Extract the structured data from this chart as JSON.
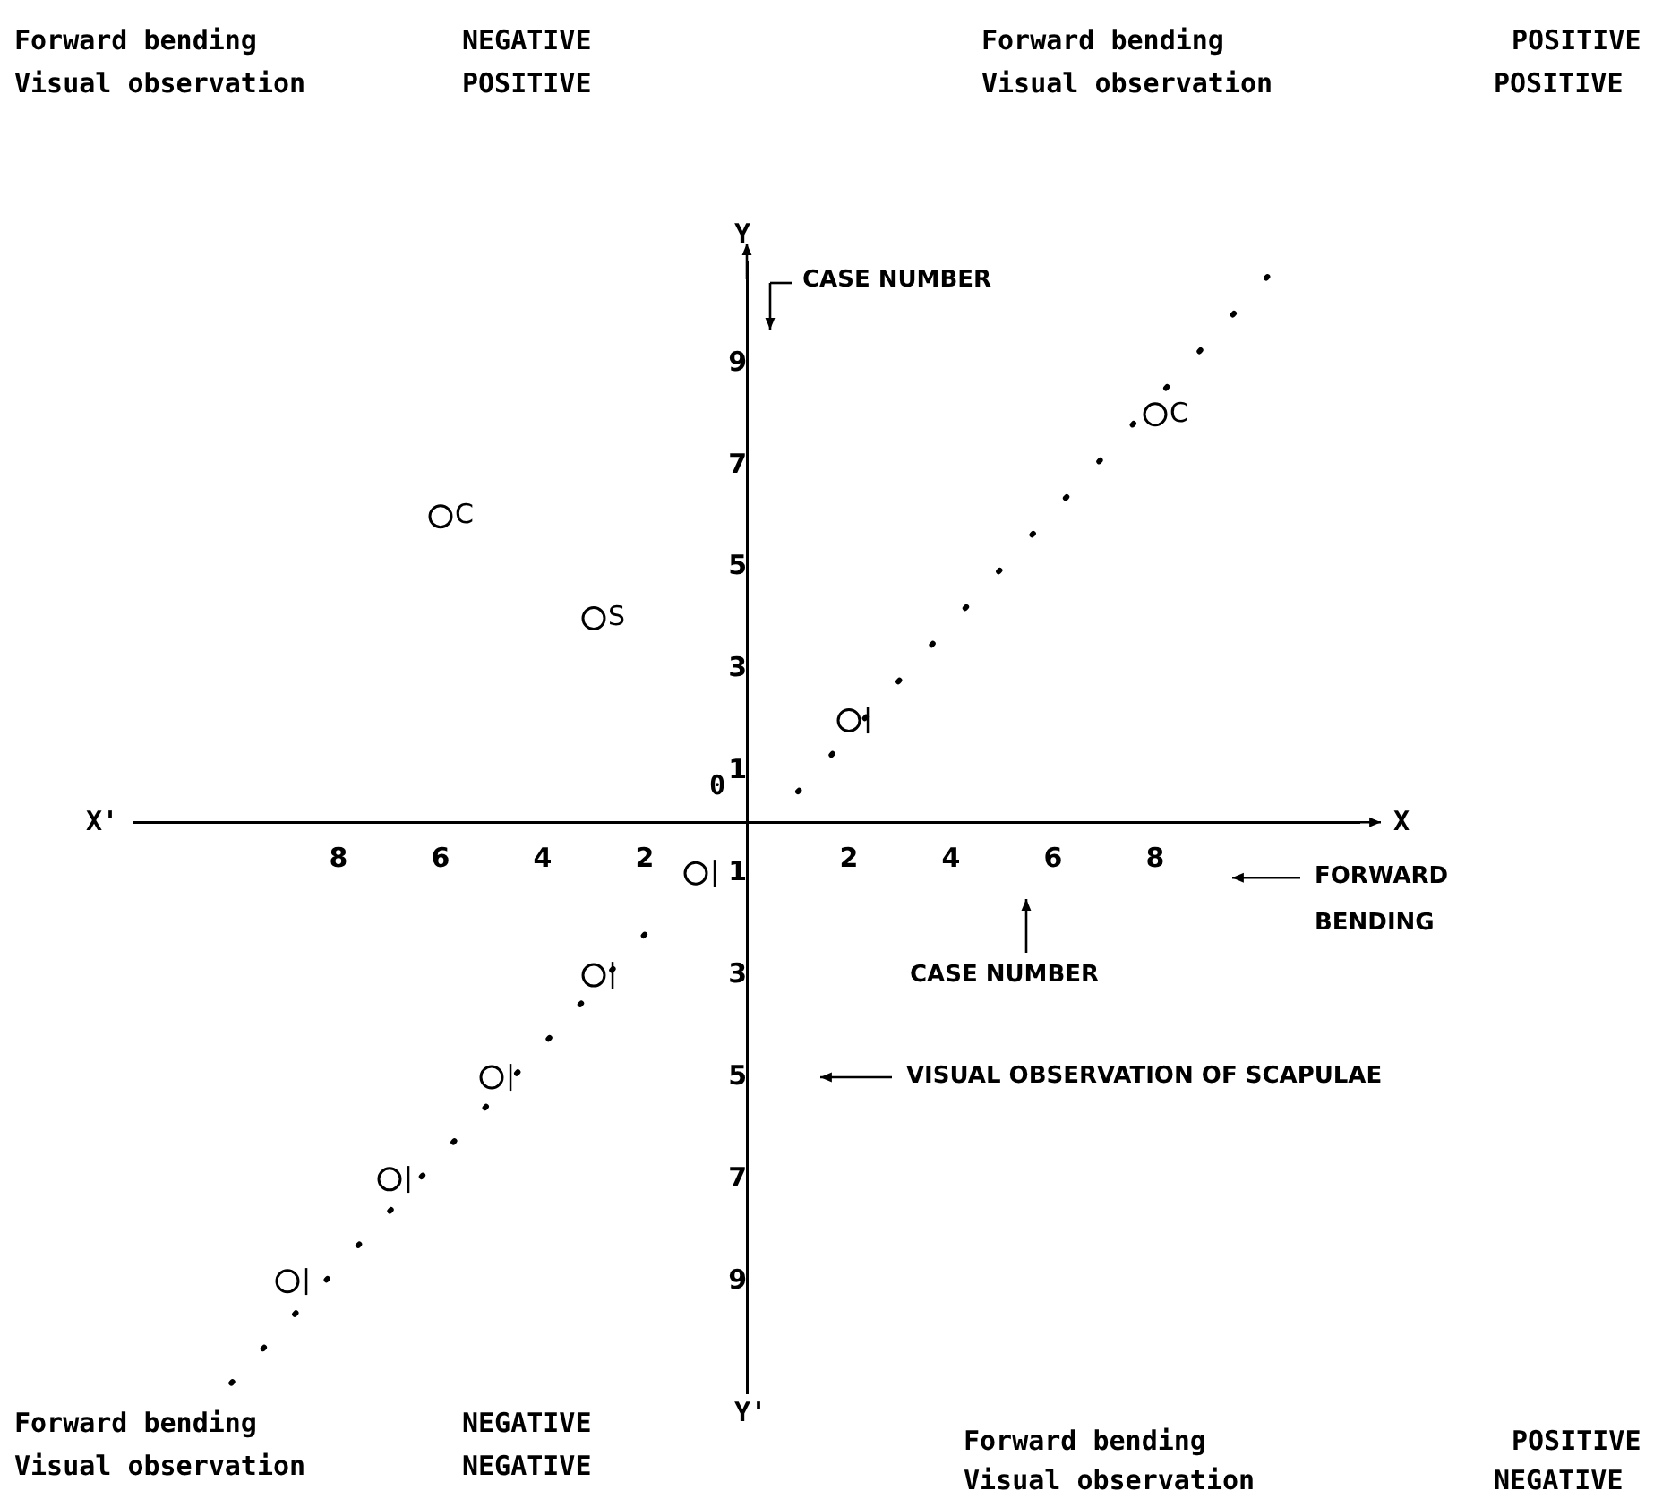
{
  "chart_data": {
    "type": "scatter",
    "xlabel": "FORWARD BENDING",
    "ylabel": "VISUAL OBSERVATION OF SCAPULAE",
    "xlim": [
      -12,
      12
    ],
    "ylim": [
      -11.2,
      11
    ],
    "xticks": [
      {
        "value": -8,
        "label": "8"
      },
      {
        "value": -6,
        "label": "6"
      },
      {
        "value": -4,
        "label": "4"
      },
      {
        "value": -2,
        "label": "2"
      },
      2,
      4,
      6,
      8
    ],
    "yticks": [
      {
        "value": -9,
        "label": "9"
      },
      {
        "value": -7,
        "label": "7"
      },
      {
        "value": -5,
        "label": "5"
      },
      {
        "value": -3,
        "label": "3"
      },
      {
        "value": -1,
        "label": "1"
      },
      1,
      3,
      5,
      7,
      9
    ],
    "grid": false,
    "legend": false,
    "marker": "circle",
    "series": [
      {
        "name": "C",
        "color": "#000000",
        "x": [
          -6,
          8
        ],
        "values": [
          6,
          8
        ]
      },
      {
        "name": "S",
        "color": "#000000",
        "x": [
          -3
        ],
        "values": [
          4
        ]
      },
      {
        "name": "|",
        "color": "#000000",
        "x": [
          2,
          -1,
          -3,
          -5,
          -7,
          -9
        ],
        "values": [
          2,
          -1,
          -3,
          -5,
          -7,
          -9
        ]
      },
      {
        "type": "line",
        "line_style": "dotted",
        "marker": "none",
        "color": "#000000",
        "x": [
          1,
          10.2
        ],
        "values": [
          0.6,
          10.7
        ]
      },
      {
        "type": "line",
        "line_style": "dotted",
        "marker": "none",
        "color": "#000000",
        "x": [
          -2,
          -10.1
        ],
        "values": [
          -2.2,
          -11
        ]
      }
    ],
    "annotations": [
      "Forward bending",
      "NEGATIVE",
      "Visual observation",
      "POSITIVE",
      "Forward bending",
      "POSITIVE",
      "Visual observation",
      "POSITIVE",
      "Forward bending",
      "NEGATIVE",
      "Visual observation",
      "NEGATIVE",
      "Forward bending",
      "POSITIVE",
      "Visual observation",
      "NEGATIVE",
      "X'",
      "X",
      "Y",
      "Y'",
      "CASE NUMBER",
      "CASE NUMBER",
      "0"
    ]
  }
}
